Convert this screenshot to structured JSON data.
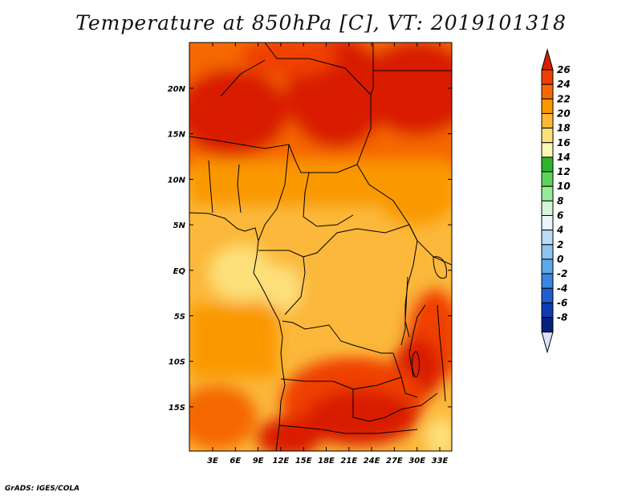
{
  "title": "Temperature at 850hPa [C], VT: 2019101318",
  "credit": "GrADS: IGES/COLA",
  "map": {
    "lat_labels": [
      "20N",
      "15N",
      "10N",
      "5N",
      "EQ",
      "5S",
      "10S",
      "15S"
    ],
    "lon_labels": [
      "3E",
      "6E",
      "9E",
      "12E",
      "15E",
      "18E",
      "21E",
      "24E",
      "27E",
      "30E",
      "33E"
    ]
  },
  "colorbar": {
    "levels": [
      "26",
      "24",
      "22",
      "20",
      "18",
      "16",
      "14",
      "12",
      "10",
      "8",
      "6",
      "4",
      "2",
      "0",
      "-2",
      "-4",
      "-6",
      "-8"
    ],
    "colors": [
      "#d91e00",
      "#ef3f00",
      "#f56800",
      "#fa9800",
      "#fbb83a",
      "#fde07a",
      "#fff7b8",
      "#2db52d",
      "#5dd35d",
      "#97ea97",
      "#d6f5d6",
      "#e8f4fc",
      "#b8dcf7",
      "#8cc4f0",
      "#5ea8ea",
      "#3a86e0",
      "#1e5ed0",
      "#0c3cb0",
      "#06207e"
    ],
    "under_color": "#dce0ff"
  }
}
